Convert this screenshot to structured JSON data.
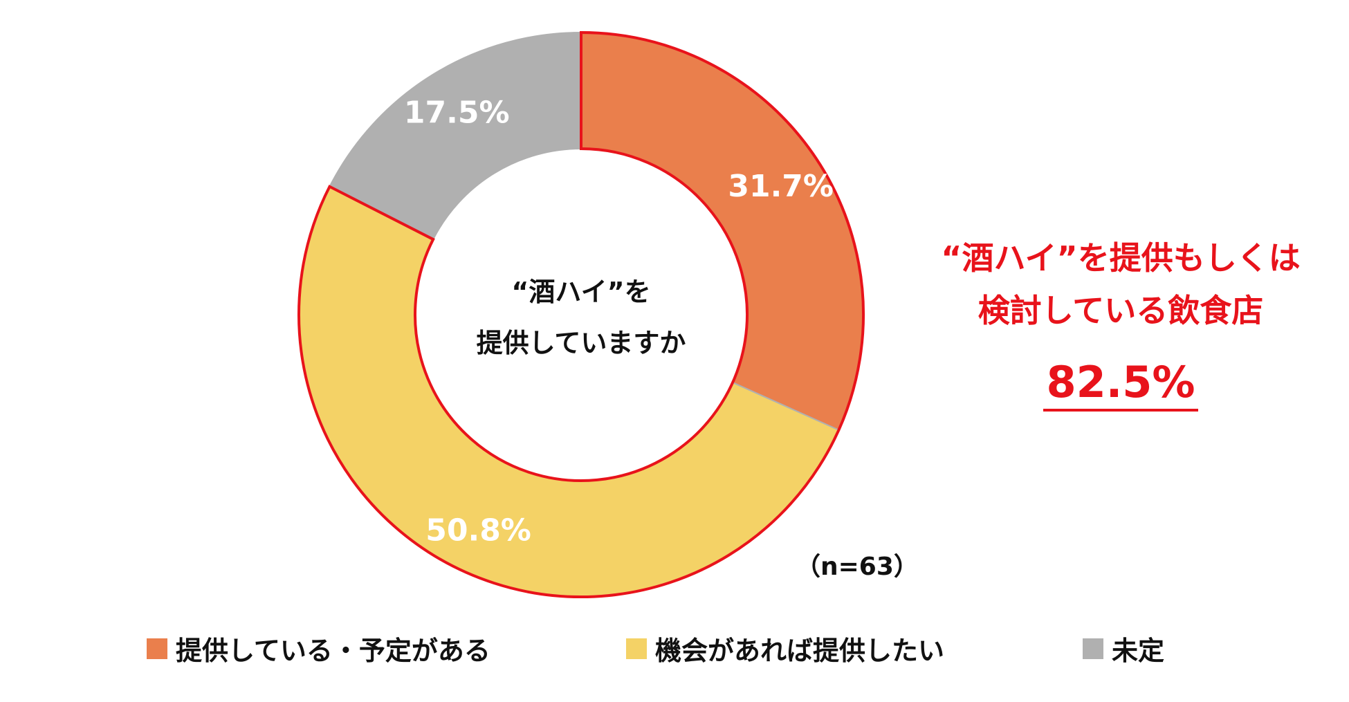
{
  "chart_data": {
    "type": "pie",
    "style": "donut",
    "center_title_lines": [
      "“酒ハイ”を",
      "提供していますか"
    ],
    "slices": [
      {
        "name": "提供している・予定がある",
        "value": 31.7,
        "label": "31.7%",
        "color": "#ea7f4c",
        "highlighted": true
      },
      {
        "name": "機会があれば提供したい",
        "value": 50.8,
        "label": "50.8%",
        "color": "#f4d266",
        "highlighted": true
      },
      {
        "name": "未定",
        "value": 17.5,
        "label": "17.5%",
        "color": "#b0b0b0",
        "highlighted": false
      }
    ],
    "sample_note": "（n=63）",
    "highlight_color": "#e8131b"
  },
  "callout": {
    "lines": [
      "“酒ハイ”を提供もしくは",
      "検討している飲食店"
    ],
    "value": "82.5%"
  },
  "legend": [
    {
      "label": "提供している・予定がある",
      "color": "#ea7f4c"
    },
    {
      "label": "機会があれば提供したい",
      "color": "#f4d266"
    },
    {
      "label": "未定",
      "color": "#b0b0b0"
    }
  ]
}
